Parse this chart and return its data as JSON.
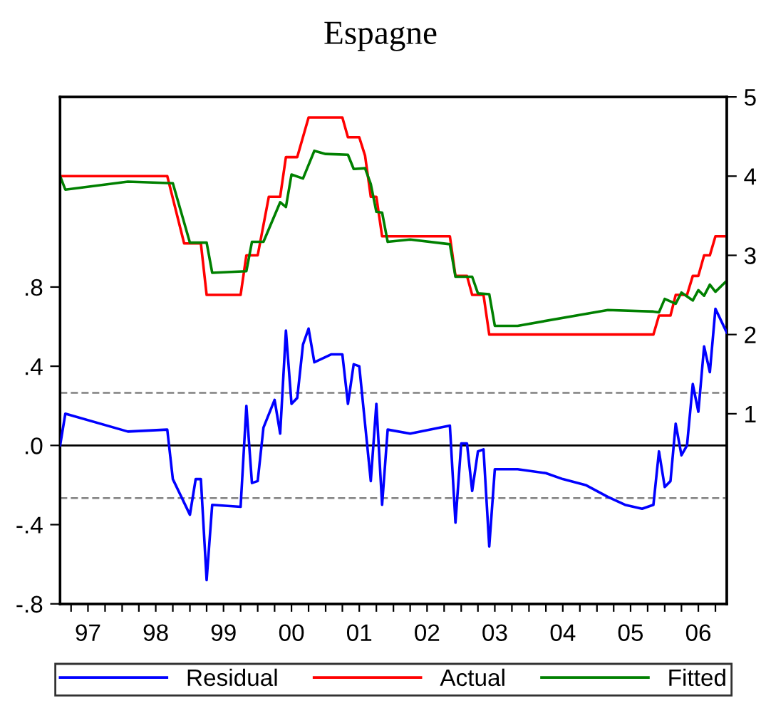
{
  "chart_data": {
    "type": "line",
    "title": "Espagne",
    "legend": "bottom",
    "grid": false,
    "xlim": [
      "1997-02",
      "2006-12"
    ],
    "xticks": [
      {
        "value": "1997-04",
        "label": null
      },
      {
        "value": "1997-07",
        "label": "97"
      },
      {
        "value": "1997-10",
        "label": null
      },
      {
        "value": "1998-01",
        "label": null
      },
      {
        "value": "1998-04",
        "label": null
      },
      {
        "value": "1998-07",
        "label": "98"
      },
      {
        "value": "1998-10",
        "label": null
      },
      {
        "value": "1999-01",
        "label": null
      },
      {
        "value": "1999-04",
        "label": null
      },
      {
        "value": "1999-07",
        "label": "99"
      },
      {
        "value": "1999-10",
        "label": null
      },
      {
        "value": "2000-01",
        "label": null
      },
      {
        "value": "2000-04",
        "label": null
      },
      {
        "value": "2000-07",
        "label": "00"
      },
      {
        "value": "2000-10",
        "label": null
      },
      {
        "value": "2001-01",
        "label": null
      },
      {
        "value": "2001-04",
        "label": null
      },
      {
        "value": "2001-07",
        "label": "01"
      },
      {
        "value": "2001-10",
        "label": null
      },
      {
        "value": "2002-01",
        "label": null
      },
      {
        "value": "2002-04",
        "label": null
      },
      {
        "value": "2002-07",
        "label": "02"
      },
      {
        "value": "2002-10",
        "label": null
      },
      {
        "value": "2003-01",
        "label": null
      },
      {
        "value": "2003-04",
        "label": null
      },
      {
        "value": "2003-07",
        "label": "03"
      },
      {
        "value": "2003-10",
        "label": null
      },
      {
        "value": "2004-01",
        "label": null
      },
      {
        "value": "2004-04",
        "label": null
      },
      {
        "value": "2004-07",
        "label": "04"
      },
      {
        "value": "2004-10",
        "label": null
      },
      {
        "value": "2005-01",
        "label": null
      },
      {
        "value": "2005-04",
        "label": null
      },
      {
        "value": "2005-07",
        "label": "05"
      },
      {
        "value": "2005-10",
        "label": null
      },
      {
        "value": "2006-01",
        "label": null
      },
      {
        "value": "2006-04",
        "label": null
      },
      {
        "value": "2006-07",
        "label": "06"
      },
      {
        "value": "2006-10",
        "label": null
      }
    ],
    "ylim": [
      -0.8,
      1.76
    ],
    "yticks": [
      {
        "value": -0.8,
        "label": "-.8"
      },
      {
        "value": -0.4,
        "label": "-.4"
      },
      {
        "value": 0,
        "label": ".0"
      },
      {
        "value": 0.4,
        "label": ".4"
      },
      {
        "value": 0.8,
        "label": ".8"
      }
    ],
    "y2lim": [
      -1.4,
      5.0
    ],
    "y2ticks": [
      1,
      2,
      3,
      4,
      5
    ],
    "ref_lines": [
      {
        "axis": "y",
        "value": 0,
        "color": "#000000",
        "line_style": "solid"
      },
      {
        "axis": "y",
        "value": 0.266,
        "color": "#808080",
        "line_style": "dashed"
      },
      {
        "axis": "y",
        "value": -0.266,
        "color": "#808080",
        "line_style": "dashed"
      }
    ],
    "series": [
      {
        "name": "Residual",
        "color": "#0000ff",
        "axis": "y",
        "x": [
          "1997-02",
          "1997-03",
          "1998-02",
          "1998-09",
          "1998-10",
          "1999-01",
          "1999-02",
          "1999-03",
          "1999-04",
          "1999-05",
          "1999-10",
          "1999-11",
          "1999-12",
          "2000-01",
          "2000-02",
          "2000-04",
          "2000-05",
          "2000-06",
          "2000-07",
          "2000-08",
          "2000-09",
          "2000-10",
          "2000-11",
          "2001-02",
          "2001-04",
          "2001-05",
          "2001-06",
          "2001-07",
          "2001-09",
          "2001-10",
          "2001-11",
          "2001-12",
          "2002-04",
          "2002-11",
          "2002-12",
          "2003-01",
          "2003-02",
          "2003-03",
          "2003-04",
          "2003-05",
          "2003-06",
          "2003-07",
          "2003-11",
          "2004-04",
          "2004-07",
          "2004-11",
          "2005-03",
          "2005-06",
          "2005-09",
          "2005-11",
          "2005-12",
          "2006-01",
          "2006-02",
          "2006-03",
          "2006-04",
          "2006-05",
          "2006-06",
          "2006-07",
          "2006-08",
          "2006-09",
          "2006-10",
          "2006-12"
        ],
        "values": [
          0.0,
          0.16,
          0.07,
          0.08,
          -0.17,
          -0.35,
          -0.17,
          -0.17,
          -0.68,
          -0.3,
          -0.31,
          0.2,
          -0.19,
          -0.18,
          0.09,
          0.23,
          0.06,
          0.58,
          0.21,
          0.24,
          0.51,
          0.59,
          0.42,
          0.46,
          0.46,
          0.21,
          0.41,
          0.4,
          -0.18,
          0.21,
          -0.3,
          0.08,
          0.06,
          0.1,
          -0.39,
          0.01,
          0.01,
          -0.23,
          -0.03,
          -0.02,
          -0.51,
          -0.12,
          -0.12,
          -0.14,
          -0.17,
          -0.2,
          -0.26,
          -0.3,
          -0.32,
          -0.3,
          -0.03,
          -0.21,
          -0.18,
          0.11,
          -0.05,
          0.0,
          0.31,
          0.17,
          0.5,
          0.37,
          0.69,
          0.57
        ]
      },
      {
        "name": "Actual",
        "color": "#ff0000",
        "axis": "y2",
        "x": [
          "1997-02",
          "1998-09",
          "1998-12",
          "1999-03",
          "1999-04",
          "1999-10",
          "1999-11",
          "2000-01",
          "2000-03",
          "2000-05",
          "2000-06",
          "2000-08",
          "2000-10",
          "2001-04",
          "2001-05",
          "2001-07",
          "2001-08",
          "2001-09",
          "2001-10",
          "2001-11",
          "2002-11",
          "2002-12",
          "2003-02",
          "2003-03",
          "2003-05",
          "2003-06",
          "2005-11",
          "2005-12",
          "2006-02",
          "2006-03",
          "2006-05",
          "2006-06",
          "2006-07",
          "2006-08",
          "2006-09",
          "2006-10",
          "2006-12"
        ],
        "values": [
          4.0,
          4.0,
          3.15,
          3.15,
          2.5,
          2.5,
          3.0,
          3.0,
          3.74,
          3.74,
          4.24,
          4.24,
          4.74,
          4.74,
          4.49,
          4.49,
          4.26,
          3.74,
          3.74,
          3.24,
          3.24,
          2.74,
          2.74,
          2.5,
          2.5,
          2.0,
          2.0,
          2.24,
          2.24,
          2.5,
          2.5,
          2.74,
          2.74,
          3.0,
          3.0,
          3.24,
          3.24
        ]
      },
      {
        "name": "Fitted",
        "color": "#008000",
        "axis": "y2",
        "x": [
          "1997-02",
          "1997-03",
          "1998-02",
          "1998-10",
          "1999-01",
          "1999-04",
          "1999-05",
          "1999-11",
          "1999-12",
          "2000-02",
          "2000-05",
          "2000-06",
          "2000-07",
          "2000-09",
          "2000-11",
          "2001-01",
          "2001-05",
          "2001-06",
          "2001-08",
          "2001-09",
          "2001-10",
          "2001-11",
          "2001-12",
          "2002-04",
          "2002-11",
          "2002-12",
          "2003-03",
          "2003-04",
          "2003-06",
          "2003-07",
          "2003-11",
          "2005-03",
          "2005-11",
          "2005-12",
          "2006-01",
          "2006-03",
          "2006-04",
          "2006-06",
          "2006-07",
          "2006-08",
          "2006-09",
          "2006-10",
          "2006-12"
        ],
        "values": [
          4.0,
          3.83,
          3.93,
          3.91,
          3.16,
          3.16,
          2.78,
          2.8,
          3.17,
          3.17,
          3.67,
          3.61,
          4.02,
          3.97,
          4.32,
          4.28,
          4.27,
          4.09,
          4.1,
          3.9,
          3.55,
          3.54,
          3.17,
          3.2,
          3.14,
          2.73,
          2.73,
          2.52,
          2.51,
          2.11,
          2.11,
          2.31,
          2.29,
          2.28,
          2.45,
          2.39,
          2.53,
          2.43,
          2.56,
          2.49,
          2.63,
          2.54,
          2.68
        ]
      }
    ]
  }
}
